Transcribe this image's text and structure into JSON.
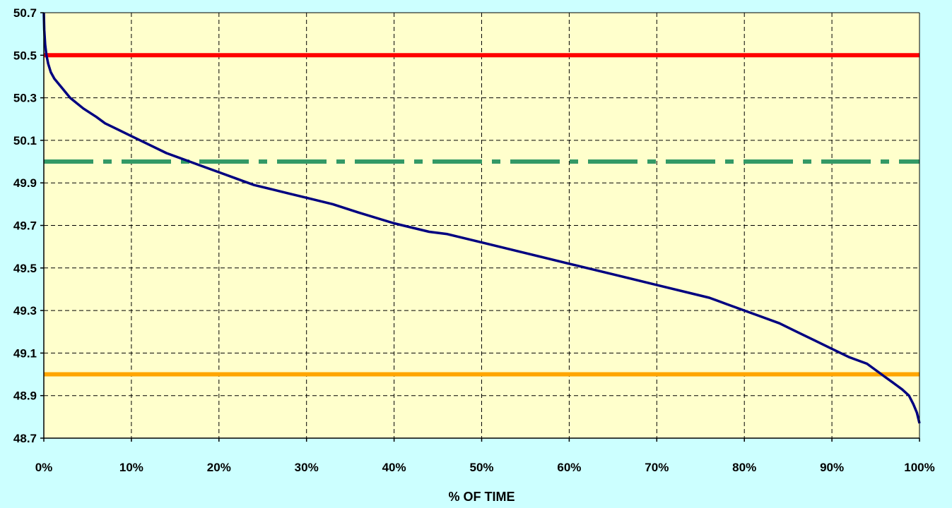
{
  "chart_data": {
    "type": "line",
    "title": "",
    "xlabel": "% OF TIME",
    "ylabel": "",
    "xlim": [
      0,
      100
    ],
    "ylim": [
      48.7,
      50.7
    ],
    "x_ticks": [
      "0%",
      "10%",
      "20%",
      "30%",
      "40%",
      "50%",
      "60%",
      "70%",
      "80%",
      "90%",
      "100%"
    ],
    "y_ticks": [
      "48.7",
      "48.9",
      "49.1",
      "49.3",
      "49.5",
      "49.7",
      "49.9",
      "50.1",
      "50.3",
      "50.5",
      "50.7"
    ],
    "grid": true,
    "plot_background": "#ffffcc",
    "page_background": "#ccffff",
    "series": [
      {
        "color": "#000080",
        "style": "solid",
        "x": [
          0,
          0.05,
          0.15,
          0.3,
          0.5,
          0.8,
          1.2,
          2,
          3,
          4.5,
          6,
          7,
          8.5,
          10,
          12,
          14,
          16,
          18,
          20,
          22,
          24,
          26,
          28,
          30,
          33,
          36,
          40,
          44,
          46,
          48,
          50,
          55,
          60,
          65,
          70,
          74,
          76,
          78,
          80,
          82,
          84,
          86,
          88,
          90,
          92,
          94,
          95,
          96,
          97,
          98,
          98.8,
          99.3,
          99.7,
          100
        ],
        "y": [
          50.7,
          50.62,
          50.55,
          50.5,
          50.46,
          50.42,
          50.39,
          50.35,
          50.3,
          50.25,
          50.21,
          50.18,
          50.15,
          50.12,
          50.08,
          50.04,
          50.01,
          49.98,
          49.95,
          49.92,
          49.89,
          49.87,
          49.85,
          49.83,
          49.8,
          49.76,
          49.71,
          49.67,
          49.66,
          49.64,
          49.62,
          49.57,
          49.52,
          49.47,
          49.42,
          49.38,
          49.36,
          49.33,
          49.3,
          49.27,
          49.24,
          49.2,
          49.16,
          49.12,
          49.08,
          49.05,
          49.02,
          48.99,
          48.96,
          48.93,
          48.9,
          48.86,
          48.82,
          48.77
        ]
      }
    ],
    "reference_lines": [
      {
        "y": 50.5,
        "color": "#ff0000",
        "style": "solid"
      },
      {
        "y": 50.0,
        "color": "#339966",
        "style": "dash-dot"
      },
      {
        "y": 49.0,
        "color": "#ffa500",
        "style": "solid"
      }
    ]
  }
}
